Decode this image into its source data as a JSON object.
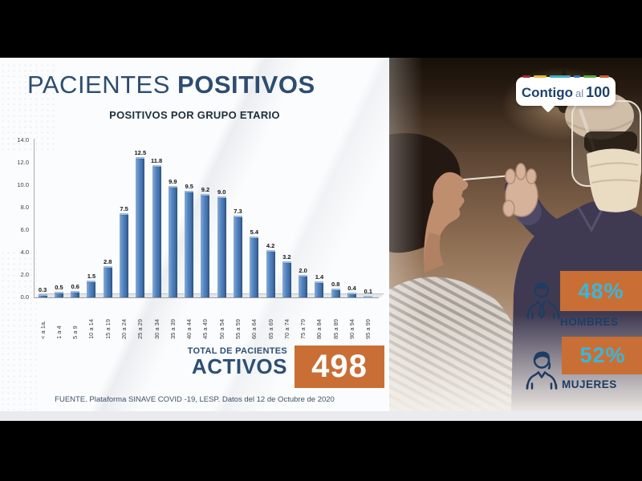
{
  "page": {
    "title": {
      "regular": "PACIENTES",
      "bold": "POSITIVOS"
    },
    "source": "FUENTE. Plataforma SINAVE COVID -19, LESP. Datos del 12 de Octubre de 2020"
  },
  "chart_data": {
    "type": "bar",
    "title": "POSITIVOS POR GRUPO ETARIO",
    "categories": [
      "< a 1a.",
      "1 a 4",
      "5 a 9",
      "10 a 14",
      "15 a 19",
      "20 a 24",
      "25 a 29",
      "30 a 34",
      "35 a 39",
      "40 a 44",
      "45 a 49",
      "50 a 54",
      "55 a 59",
      "60 a 64",
      "65 a 69",
      "70 a 74",
      "75 a 79",
      "80 a 84",
      "85 a 89",
      "90 a 94",
      "95 a 99"
    ],
    "values": [
      0.3,
      0.5,
      0.6,
      1.5,
      2.8,
      7.5,
      12.5,
      11.8,
      9.9,
      9.5,
      9.2,
      9.0,
      7.3,
      5.4,
      4.2,
      3.2,
      2.0,
      1.4,
      0.8,
      0.4,
      0.1
    ],
    "xlabel": "",
    "ylabel": "",
    "ylim": [
      0,
      14
    ],
    "yticks": [
      0,
      2,
      4,
      6,
      8,
      10,
      12,
      14
    ],
    "ytick_labels": [
      "0.0",
      "2.0",
      "4.0",
      "6.0",
      "8.0",
      "10.0",
      "12.0",
      "14.0"
    ],
    "grid": false,
    "legend": false,
    "value_labels": true,
    "bar_color": "#4f81bd"
  },
  "total": {
    "label_top": "TOTAL DE PACIENTES",
    "label_main": "ACTIVOS",
    "value": "498"
  },
  "logo": {
    "word1": "Contigo",
    "word2": "al",
    "word3": "100",
    "dashes": [
      {
        "c": "#9d2f38",
        "w": 10
      },
      {
        "c": "#e8b93e",
        "w": 16
      },
      {
        "c": "#3fafbf",
        "w": 26
      },
      {
        "c": "#2f80c0",
        "w": 8
      },
      {
        "c": "#56a845",
        "w": 16
      },
      {
        "c": "#cf5b2e",
        "w": 12
      }
    ]
  },
  "stats": [
    {
      "icon": "man-icon",
      "percent": "48%",
      "label": "HOMBRES"
    },
    {
      "icon": "woman-icon",
      "percent": "52%",
      "label": "MUJERES"
    }
  ],
  "colors": {
    "title_navy": "#2d4d70",
    "accent_orange": "#c96f35",
    "percent_cyan": "#3db5d8",
    "label_navy": "#1e3c64",
    "bar_blue": "#4f81bd"
  }
}
